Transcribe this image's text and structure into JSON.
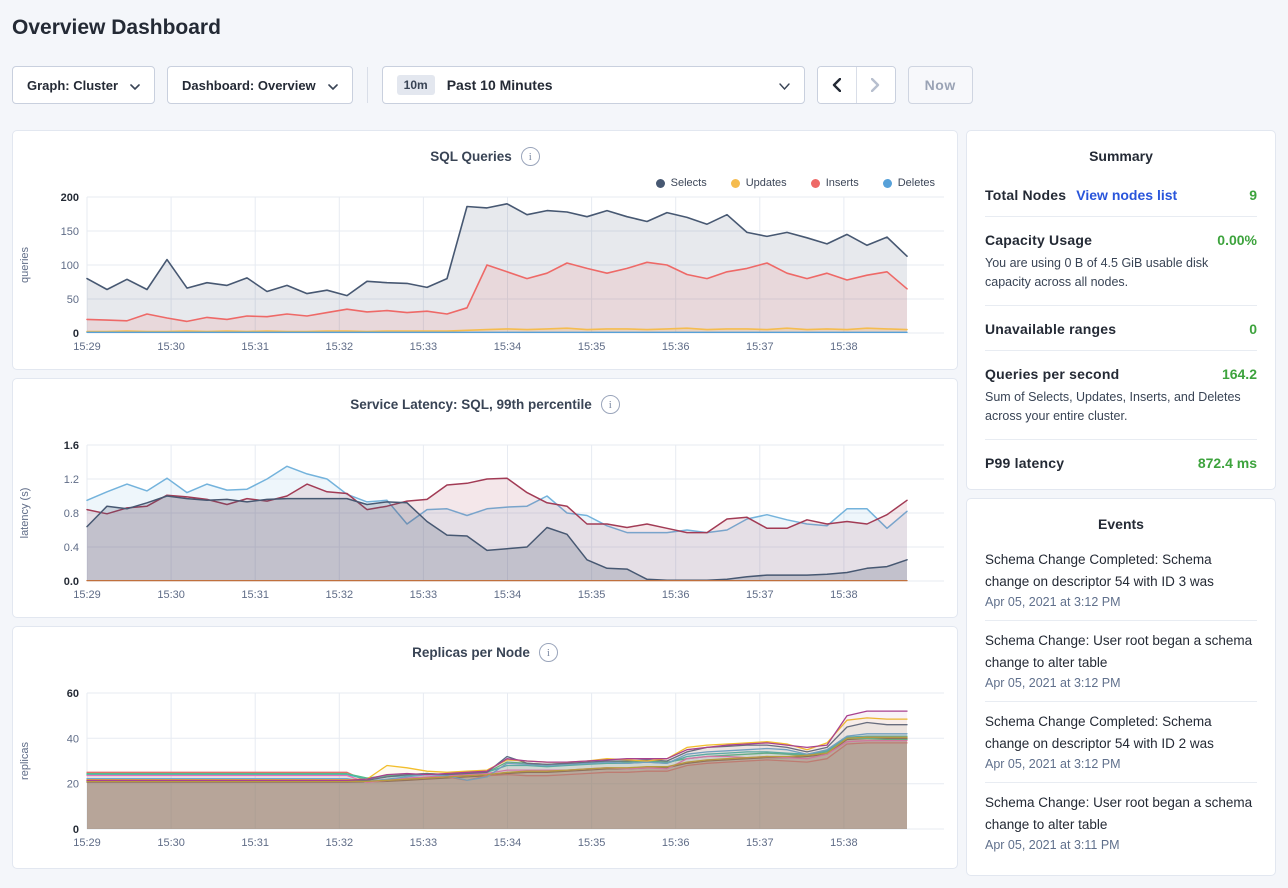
{
  "header": {
    "title": "Overview Dashboard"
  },
  "controls": {
    "graph_dropdown": "Graph: Cluster",
    "dashboard_dropdown": "Dashboard: Overview",
    "range_badge": "10m",
    "range_label": "Past 10 Minutes",
    "now_label": "Now"
  },
  "colors": {
    "accent_green": "#3da33d",
    "link_blue": "#2955db",
    "selects_navy": "#475872",
    "updates_yellow": "#f5bc4f",
    "inserts_red": "#ee6967",
    "deletes_blue": "#57a1d9"
  },
  "summary": {
    "title": "Summary",
    "total_nodes": {
      "label": "Total Nodes",
      "link": "View nodes list",
      "value": "9"
    },
    "capacity": {
      "label": "Capacity Usage",
      "value": "0.00%",
      "description": "You are using 0 B of 4.5 GiB usable disk capacity across all nodes."
    },
    "unavailable": {
      "label": "Unavailable ranges",
      "value": "0"
    },
    "qps": {
      "label": "Queries per second",
      "value": "164.2",
      "description": "Sum of Selects, Updates, Inserts, and Deletes across your entire cluster."
    },
    "p99": {
      "label": "P99 latency",
      "value": "872.4 ms"
    }
  },
  "events": {
    "title": "Events",
    "items": [
      {
        "title": "Schema Change Completed: Schema change on descriptor 54 with ID 3 was",
        "timestamp": "Apr 05, 2021 at 3:12 PM"
      },
      {
        "title": "Schema Change: User root began a schema change to alter table",
        "timestamp": "Apr 05, 2021 at 3:12 PM"
      },
      {
        "title": "Schema Change Completed: Schema change on descriptor 54 with ID 2 was",
        "timestamp": "Apr 05, 2021 at 3:12 PM"
      },
      {
        "title": "Schema Change: User root began a schema change to alter table",
        "timestamp": "Apr 05, 2021 at 3:11 PM"
      }
    ]
  },
  "chart_data": [
    {
      "type": "area",
      "title": "SQL Queries",
      "unit": "queries",
      "svg_name": "sql-queries-chart",
      "y_max": 200,
      "y_ticks": [
        0,
        50,
        100,
        150,
        200
      ],
      "y_tick_labels": [
        "0",
        "50",
        "100",
        "150",
        "200"
      ],
      "x_tick_labels": [
        "15:29",
        "15:30",
        "15:31",
        "15:32",
        "15:33",
        "15:34",
        "15:35",
        "15:36",
        "15:37",
        "15:38"
      ],
      "legend": [
        {
          "label": "Selects",
          "color": "#475872"
        },
        {
          "label": "Updates",
          "color": "#f5bc4f"
        },
        {
          "label": "Inserts",
          "color": "#ee6967"
        },
        {
          "label": "Deletes",
          "color": "#57a1d9"
        }
      ],
      "series": [
        {
          "name": "Selects",
          "color": "#475872",
          "fill_opacity": 0.13,
          "stroke": 1.6,
          "values": [
            80,
            64,
            79,
            64,
            108,
            66,
            74,
            70,
            81,
            61,
            70,
            58,
            63,
            55,
            76,
            74,
            73,
            67,
            80,
            186,
            184,
            190,
            174,
            180,
            178,
            171,
            180,
            171,
            164,
            177,
            170,
            160,
            174,
            148,
            142,
            148,
            140,
            131,
            145,
            129,
            141,
            113
          ]
        },
        {
          "name": "Inserts",
          "color": "#ee6967",
          "fill_opacity": 0.13,
          "stroke": 1.6,
          "values": [
            20,
            19,
            18,
            28,
            22,
            17,
            23,
            20,
            25,
            24,
            28,
            25,
            30,
            35,
            31,
            33,
            30,
            32,
            28,
            37,
            100,
            90,
            80,
            88,
            103,
            95,
            88,
            95,
            104,
            100,
            86,
            80,
            90,
            95,
            103,
            88,
            80,
            88,
            78,
            85,
            90,
            65
          ]
        },
        {
          "name": "Updates",
          "color": "#f5bc4f",
          "fill_opacity": 0.18,
          "stroke": 1.6,
          "values": [
            2,
            2,
            3,
            2,
            2,
            3,
            2,
            3,
            2,
            3,
            2,
            2,
            3,
            3,
            2,
            3,
            3,
            3,
            3,
            4,
            5,
            6,
            5,
            6,
            7,
            5,
            6,
            6,
            5,
            6,
            7,
            5,
            6,
            6,
            5,
            7,
            5,
            6,
            5,
            7,
            6,
            5
          ]
        },
        {
          "name": "Deletes",
          "color": "#57a1d9",
          "fill_opacity": 0.1,
          "stroke": 1.4,
          "values": [
            1,
            1
          ]
        }
      ]
    },
    {
      "type": "area",
      "title": "Service Latency: SQL, 99th percentile",
      "unit": "latency (s)",
      "svg_name": "service-latency-chart",
      "y_max": 1.6,
      "y_ticks": [
        0,
        0.4,
        0.8,
        1.2,
        1.6
      ],
      "y_tick_labels": [
        "0.0",
        "0.4",
        "0.8",
        "1.2",
        "1.6"
      ],
      "x_tick_labels": [
        "15:29",
        "15:30",
        "15:31",
        "15:32",
        "15:33",
        "15:34",
        "15:35",
        "15:36",
        "15:37",
        "15:38"
      ],
      "series": [
        {
          "name": "p99-blue",
          "color": "#74b3dc",
          "fill_opacity": 0.12,
          "stroke": 1.5,
          "values": [
            0.95,
            1.05,
            1.14,
            1.06,
            1.21,
            1.04,
            1.14,
            1.07,
            1.08,
            1.2,
            1.35,
            1.26,
            1.2,
            1.02,
            0.93,
            0.95,
            0.67,
            0.84,
            0.85,
            0.77,
            0.85,
            0.87,
            0.88,
            1.0,
            0.8,
            0.77,
            0.65,
            0.57,
            0.57,
            0.57,
            0.6,
            0.57,
            0.6,
            0.73,
            0.78,
            0.72,
            0.67,
            0.65,
            0.85,
            0.85,
            0.62,
            0.82
          ]
        },
        {
          "name": "p99-maroon",
          "color": "#a23b55",
          "fill_opacity": 0.12,
          "stroke": 1.5,
          "values": [
            0.84,
            0.79,
            0.86,
            0.88,
            1.01,
            0.99,
            0.96,
            0.9,
            0.97,
            0.94,
            1.0,
            1.14,
            1.05,
            1.03,
            0.84,
            0.88,
            0.94,
            0.96,
            1.13,
            1.15,
            1.2,
            1.21,
            1.04,
            0.92,
            0.88,
            0.67,
            0.67,
            0.63,
            0.67,
            0.62,
            0.57,
            0.57,
            0.73,
            0.75,
            0.62,
            0.62,
            0.72,
            0.67,
            0.7,
            0.67,
            0.78,
            0.95
          ]
        },
        {
          "name": "p99-navy",
          "color": "#475872",
          "fill_opacity": 0.22,
          "stroke": 1.5,
          "values": [
            0.64,
            0.88,
            0.85,
            0.92,
            1.0,
            0.97,
            0.95,
            0.96,
            0.93,
            0.96,
            0.97,
            0.97,
            0.97,
            0.97,
            0.9,
            0.93,
            0.92,
            0.7,
            0.54,
            0.53,
            0.36,
            0.38,
            0.4,
            0.63,
            0.55,
            0.25,
            0.15,
            0.14,
            0.02,
            0.01,
            0.01,
            0.01,
            0.02,
            0.05,
            0.07,
            0.07,
            0.07,
            0.08,
            0.1,
            0.15,
            0.17,
            0.25
          ]
        },
        {
          "name": "p99-orange",
          "color": "#c0703d",
          "fill_opacity": 0,
          "stroke": 1.3,
          "values": [
            0.005,
            0.005
          ]
        }
      ]
    },
    {
      "type": "area",
      "title": "Replicas per Node",
      "unit": "replicas",
      "svg_name": "replicas-per-node-chart",
      "y_max": 60,
      "y_ticks": [
        0,
        20,
        40,
        60
      ],
      "y_tick_labels": [
        "0",
        "20",
        "40",
        "60"
      ],
      "x_tick_labels": [
        "15:29",
        "15:30",
        "15:31",
        "15:32",
        "15:33",
        "15:34",
        "15:35",
        "15:36",
        "15:37",
        "15:38"
      ],
      "series": [
        {
          "name": "node-1",
          "color": "#8f6045",
          "fill_opacity": 0.38,
          "stroke": 1.3,
          "values": [
            20.7,
            20.7,
            20.7,
            20.7,
            20.7,
            20.7,
            20.7,
            20.7,
            20.7,
            20.7,
            20.7,
            20.7,
            20.7,
            20.7,
            20.8,
            21,
            21.5,
            22,
            22.5,
            23,
            23.5,
            24.5,
            25,
            25,
            25.5,
            26,
            26.5,
            26.5,
            27,
            27,
            29,
            30,
            30.5,
            31,
            31.5,
            31.5,
            32,
            33,
            39.5,
            40,
            40,
            40
          ]
        },
        {
          "name": "node-2",
          "color": "#e1706b",
          "fill_opacity": 0.07,
          "stroke": 1.3,
          "values": [
            25,
            25,
            25,
            25,
            25,
            25,
            25,
            25,
            25,
            25,
            25,
            25,
            25,
            25,
            21,
            21.5,
            22,
            22.5,
            23,
            21.5,
            23.5,
            24,
            23.5,
            23.5,
            24,
            24.5,
            25,
            25,
            25.5,
            25.5,
            28,
            29,
            29.5,
            30,
            30.5,
            30,
            29.5,
            31,
            37.5,
            38,
            38,
            38
          ]
        },
        {
          "name": "node-3",
          "color": "#57bd86",
          "fill_opacity": 0.07,
          "stroke": 1.3,
          "values": [
            24.4,
            24.4,
            24.4,
            24.4,
            24.4,
            24.4,
            24.4,
            24.4,
            24.4,
            24.4,
            24.4,
            24.4,
            24.4,
            24.4,
            22.5,
            23.5,
            24,
            24.5,
            24,
            24.5,
            25,
            29.5,
            29,
            28.5,
            29,
            29,
            30,
            29.5,
            30,
            29.5,
            31,
            32,
            32.5,
            33,
            33.5,
            33,
            32.5,
            34,
            40,
            40,
            39.5,
            39.5
          ]
        },
        {
          "name": "node-4",
          "color": "#49b8b0",
          "fill_opacity": 0.07,
          "stroke": 1.3,
          "values": [
            24,
            24,
            24,
            24,
            24,
            24,
            24,
            24,
            24,
            24,
            24,
            24,
            24,
            24,
            22,
            23,
            23.5,
            24,
            24,
            24.5,
            25,
            28,
            28,
            27.5,
            28,
            28.5,
            29,
            29,
            29.5,
            29,
            32,
            33,
            33.5,
            34,
            34,
            33.5,
            33,
            34.5,
            40.5,
            41,
            41,
            41
          ]
        },
        {
          "name": "node-5",
          "color": "#e873b7",
          "fill_opacity": 0.07,
          "stroke": 1.3,
          "values": [
            23.6,
            23.6,
            23.6,
            23.6,
            23.6,
            23.6,
            23.6,
            23.6,
            23.6,
            23.6,
            23.6,
            23.6,
            23.6,
            23.6,
            20.5,
            21.5,
            22.5,
            23,
            23.5,
            24,
            24.5,
            26,
            26,
            26,
            26,
            26.5,
            27,
            26.5,
            27,
            26.5,
            31,
            32,
            32,
            31.5,
            32,
            31.5,
            31,
            33,
            38.5,
            39,
            39,
            39
          ]
        },
        {
          "name": "node-6",
          "color": "#68a9d6",
          "fill_opacity": 0.07,
          "stroke": 1.3,
          "values": [
            22.2,
            22.2,
            22.2,
            22.2,
            22.2,
            22.2,
            22.2,
            22.2,
            22.2,
            22.2,
            22.2,
            22.2,
            22.2,
            22.2,
            21,
            22,
            23,
            24,
            23.5,
            21.5,
            23,
            29,
            28.5,
            28,
            28.5,
            29,
            29.5,
            29,
            29.5,
            29,
            33,
            34,
            34.5,
            35,
            35.5,
            35,
            33,
            35,
            41,
            42,
            42,
            42
          ]
        },
        {
          "name": "node-7",
          "color": "#5a6b84",
          "fill_opacity": 0.07,
          "stroke": 1.3,
          "values": [
            21.2,
            21.2,
            21.2,
            21.2,
            21.2,
            21.2,
            21.2,
            21.2,
            21.2,
            21.2,
            21.2,
            21.2,
            21.2,
            21.2,
            21.5,
            23,
            24,
            24.5,
            24,
            24.5,
            25,
            32,
            29,
            28.5,
            29,
            29.5,
            30,
            30,
            30.5,
            30,
            34,
            36,
            36.5,
            37,
            37,
            36,
            34,
            36,
            45,
            47,
            46,
            46
          ]
        },
        {
          "name": "node-8",
          "color": "#b5a03c",
          "fill_opacity": 0.07,
          "stroke": 1.3,
          "values": [
            21,
            21,
            21,
            21,
            21,
            21,
            21,
            21,
            21,
            21,
            21,
            21,
            21,
            21,
            21,
            21.5,
            22,
            22.5,
            23,
            23.5,
            24,
            25,
            25.5,
            25.5,
            26,
            26.5,
            27,
            27,
            27.5,
            27.5,
            29.5,
            30.5,
            31,
            31.5,
            32,
            32,
            32.5,
            33.5,
            40,
            40.5,
            40.5,
            40.5
          ]
        },
        {
          "name": "node-9",
          "color": "#f2be2c",
          "fill_opacity": 0.07,
          "stroke": 1.3,
          "values": [
            21.8,
            21.8,
            21.8,
            21.8,
            21.8,
            21.8,
            21.8,
            21.8,
            21.8,
            21.8,
            21.8,
            21.8,
            21.8,
            21.8,
            22,
            28,
            27,
            25.5,
            25,
            25.5,
            26,
            30.5,
            30,
            29.5,
            29.5,
            30,
            31,
            30.5,
            30,
            31,
            36,
            37,
            37.5,
            38,
            38.5,
            37.5,
            35,
            38,
            48,
            49,
            48.5,
            48.5
          ]
        },
        {
          "name": "node-10",
          "color": "#a8418f",
          "fill_opacity": 0.07,
          "stroke": 1.3,
          "values": [
            21.5,
            21.5,
            21.5,
            21.5,
            21.5,
            21.5,
            21.5,
            21.5,
            21.5,
            21.5,
            21.5,
            21.5,
            21.5,
            21.5,
            22,
            24,
            24.5,
            24,
            24.5,
            25,
            25.5,
            31,
            30,
            29.5,
            29.5,
            30,
            30.5,
            31,
            31,
            31,
            35,
            36,
            37,
            37.5,
            38,
            37,
            36,
            37,
            50,
            52,
            52,
            52
          ]
        }
      ]
    }
  ]
}
